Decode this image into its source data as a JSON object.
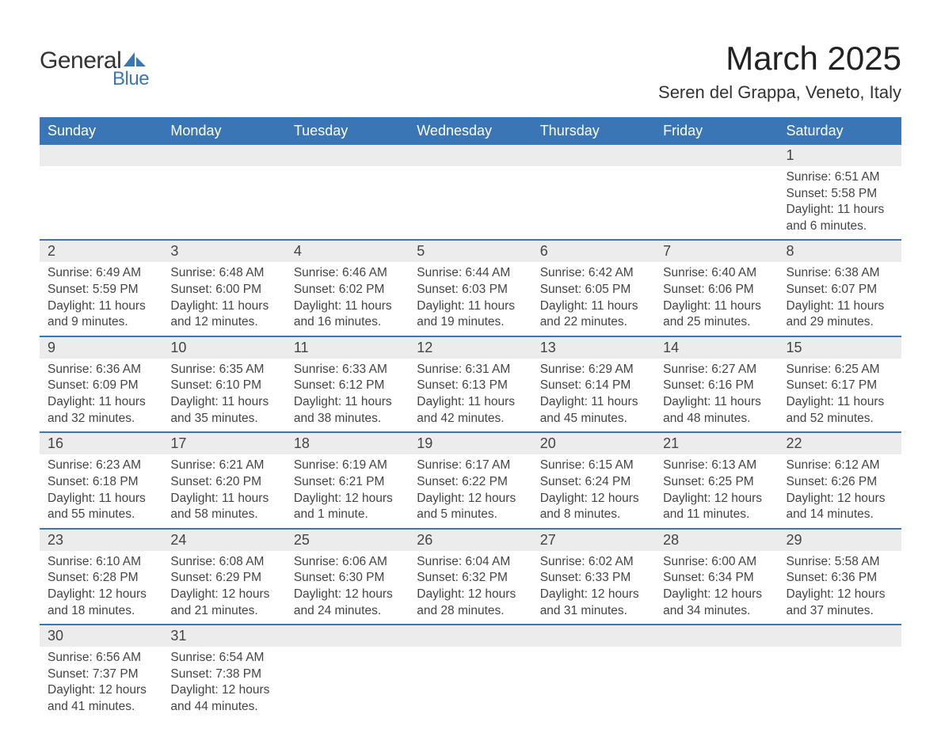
{
  "logo": {
    "text1": "General",
    "text2": "Blue",
    "shape_color": "#3a75b5",
    "text1_color": "#333333"
  },
  "title": "March 2025",
  "location": "Seren del Grappa, Veneto, Italy",
  "colors": {
    "header_bg": "#3a75b5",
    "header_text": "#ffffff",
    "daynum_bg": "#ececec",
    "row_border": "#3a75b5",
    "body_text": "#444444",
    "page_bg": "#ffffff"
  },
  "fonts": {
    "title_size": 42,
    "location_size": 22,
    "header_size": 18,
    "daynum_size": 18,
    "detail_size": 15.5
  },
  "day_headers": [
    "Sunday",
    "Monday",
    "Tuesday",
    "Wednesday",
    "Thursday",
    "Friday",
    "Saturday"
  ],
  "weeks": [
    [
      null,
      null,
      null,
      null,
      null,
      null,
      {
        "n": "1",
        "sr": "Sunrise: 6:51 AM",
        "ss": "Sunset: 5:58 PM",
        "dl": "Daylight: 11 hours and 6 minutes."
      }
    ],
    [
      {
        "n": "2",
        "sr": "Sunrise: 6:49 AM",
        "ss": "Sunset: 5:59 PM",
        "dl": "Daylight: 11 hours and 9 minutes."
      },
      {
        "n": "3",
        "sr": "Sunrise: 6:48 AM",
        "ss": "Sunset: 6:00 PM",
        "dl": "Daylight: 11 hours and 12 minutes."
      },
      {
        "n": "4",
        "sr": "Sunrise: 6:46 AM",
        "ss": "Sunset: 6:02 PM",
        "dl": "Daylight: 11 hours and 16 minutes."
      },
      {
        "n": "5",
        "sr": "Sunrise: 6:44 AM",
        "ss": "Sunset: 6:03 PM",
        "dl": "Daylight: 11 hours and 19 minutes."
      },
      {
        "n": "6",
        "sr": "Sunrise: 6:42 AM",
        "ss": "Sunset: 6:05 PM",
        "dl": "Daylight: 11 hours and 22 minutes."
      },
      {
        "n": "7",
        "sr": "Sunrise: 6:40 AM",
        "ss": "Sunset: 6:06 PM",
        "dl": "Daylight: 11 hours and 25 minutes."
      },
      {
        "n": "8",
        "sr": "Sunrise: 6:38 AM",
        "ss": "Sunset: 6:07 PM",
        "dl": "Daylight: 11 hours and 29 minutes."
      }
    ],
    [
      {
        "n": "9",
        "sr": "Sunrise: 6:36 AM",
        "ss": "Sunset: 6:09 PM",
        "dl": "Daylight: 11 hours and 32 minutes."
      },
      {
        "n": "10",
        "sr": "Sunrise: 6:35 AM",
        "ss": "Sunset: 6:10 PM",
        "dl": "Daylight: 11 hours and 35 minutes."
      },
      {
        "n": "11",
        "sr": "Sunrise: 6:33 AM",
        "ss": "Sunset: 6:12 PM",
        "dl": "Daylight: 11 hours and 38 minutes."
      },
      {
        "n": "12",
        "sr": "Sunrise: 6:31 AM",
        "ss": "Sunset: 6:13 PM",
        "dl": "Daylight: 11 hours and 42 minutes."
      },
      {
        "n": "13",
        "sr": "Sunrise: 6:29 AM",
        "ss": "Sunset: 6:14 PM",
        "dl": "Daylight: 11 hours and 45 minutes."
      },
      {
        "n": "14",
        "sr": "Sunrise: 6:27 AM",
        "ss": "Sunset: 6:16 PM",
        "dl": "Daylight: 11 hours and 48 minutes."
      },
      {
        "n": "15",
        "sr": "Sunrise: 6:25 AM",
        "ss": "Sunset: 6:17 PM",
        "dl": "Daylight: 11 hours and 52 minutes."
      }
    ],
    [
      {
        "n": "16",
        "sr": "Sunrise: 6:23 AM",
        "ss": "Sunset: 6:18 PM",
        "dl": "Daylight: 11 hours and 55 minutes."
      },
      {
        "n": "17",
        "sr": "Sunrise: 6:21 AM",
        "ss": "Sunset: 6:20 PM",
        "dl": "Daylight: 11 hours and 58 minutes."
      },
      {
        "n": "18",
        "sr": "Sunrise: 6:19 AM",
        "ss": "Sunset: 6:21 PM",
        "dl": "Daylight: 12 hours and 1 minute."
      },
      {
        "n": "19",
        "sr": "Sunrise: 6:17 AM",
        "ss": "Sunset: 6:22 PM",
        "dl": "Daylight: 12 hours and 5 minutes."
      },
      {
        "n": "20",
        "sr": "Sunrise: 6:15 AM",
        "ss": "Sunset: 6:24 PM",
        "dl": "Daylight: 12 hours and 8 minutes."
      },
      {
        "n": "21",
        "sr": "Sunrise: 6:13 AM",
        "ss": "Sunset: 6:25 PM",
        "dl": "Daylight: 12 hours and 11 minutes."
      },
      {
        "n": "22",
        "sr": "Sunrise: 6:12 AM",
        "ss": "Sunset: 6:26 PM",
        "dl": "Daylight: 12 hours and 14 minutes."
      }
    ],
    [
      {
        "n": "23",
        "sr": "Sunrise: 6:10 AM",
        "ss": "Sunset: 6:28 PM",
        "dl": "Daylight: 12 hours and 18 minutes."
      },
      {
        "n": "24",
        "sr": "Sunrise: 6:08 AM",
        "ss": "Sunset: 6:29 PM",
        "dl": "Daylight: 12 hours and 21 minutes."
      },
      {
        "n": "25",
        "sr": "Sunrise: 6:06 AM",
        "ss": "Sunset: 6:30 PM",
        "dl": "Daylight: 12 hours and 24 minutes."
      },
      {
        "n": "26",
        "sr": "Sunrise: 6:04 AM",
        "ss": "Sunset: 6:32 PM",
        "dl": "Daylight: 12 hours and 28 minutes."
      },
      {
        "n": "27",
        "sr": "Sunrise: 6:02 AM",
        "ss": "Sunset: 6:33 PM",
        "dl": "Daylight: 12 hours and 31 minutes."
      },
      {
        "n": "28",
        "sr": "Sunrise: 6:00 AM",
        "ss": "Sunset: 6:34 PM",
        "dl": "Daylight: 12 hours and 34 minutes."
      },
      {
        "n": "29",
        "sr": "Sunrise: 5:58 AM",
        "ss": "Sunset: 6:36 PM",
        "dl": "Daylight: 12 hours and 37 minutes."
      }
    ],
    [
      {
        "n": "30",
        "sr": "Sunrise: 6:56 AM",
        "ss": "Sunset: 7:37 PM",
        "dl": "Daylight: 12 hours and 41 minutes."
      },
      {
        "n": "31",
        "sr": "Sunrise: 6:54 AM",
        "ss": "Sunset: 7:38 PM",
        "dl": "Daylight: 12 hours and 44 minutes."
      },
      null,
      null,
      null,
      null,
      null
    ]
  ]
}
